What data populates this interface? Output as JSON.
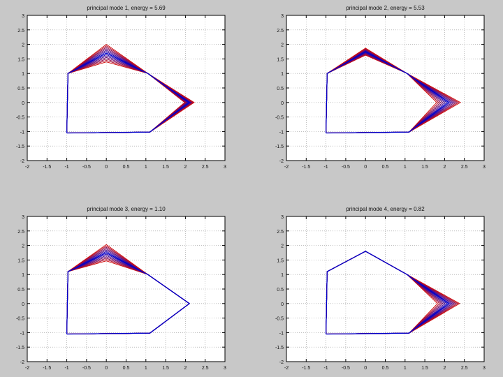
{
  "figure": {
    "background": "#c8c8c8",
    "axes_background": "#ffffff"
  },
  "chart_data": [
    {
      "type": "line",
      "title": "principal mode 1, energy = 5.69",
      "xlabel": "",
      "ylabel": "",
      "xlim": [
        -2,
        3
      ],
      "ylim": [
        3,
        -2
      ],
      "xticks": [
        -2,
        -1.5,
        -1,
        -0.5,
        0,
        0.5,
        1,
        1.5,
        2,
        2.5,
        3
      ],
      "yticks": [
        -2,
        -1.5,
        -1,
        -0.5,
        0,
        0.5,
        1,
        1.5,
        2,
        2.5,
        3
      ],
      "grid": true,
      "series_colors": [
        "#0000cc",
        "#d01010"
      ],
      "shape": {
        "x": [
          -1,
          1.1,
          2.1,
          1.05,
          0,
          -0.97,
          -1
        ],
        "y": [
          -1.05,
          -1.02,
          0,
          1,
          1.7,
          1,
          -1.05
        ]
      },
      "variation": {
        "dx": [
          0,
          0,
          0.12,
          0,
          0,
          0,
          0
        ],
        "dy": [
          0,
          0,
          0,
          0,
          0.3,
          0,
          0
        ]
      }
    },
    {
      "type": "line",
      "title": "principal mode 2, energy = 5.53",
      "xlabel": "",
      "ylabel": "",
      "xlim": [
        -2,
        3
      ],
      "ylim": [
        3,
        -2
      ],
      "xticks": [
        -2,
        -1.5,
        -1,
        -0.5,
        0,
        0.5,
        1,
        1.5,
        2,
        2.5,
        3
      ],
      "yticks": [
        -2,
        -1.5,
        -1,
        -0.5,
        0,
        0.5,
        1,
        1.5,
        2,
        2.5,
        3
      ],
      "grid": true,
      "series_colors": [
        "#0000cc",
        "#d01010"
      ],
      "shape": {
        "x": [
          -1,
          1.1,
          2.1,
          1.05,
          0,
          -0.97,
          -1
        ],
        "y": [
          -1.05,
          -1.02,
          0,
          1,
          1.75,
          1,
          -1.05
        ]
      },
      "variation": {
        "dx": [
          0,
          0,
          0.3,
          0,
          0,
          0,
          0
        ],
        "dy": [
          0,
          0,
          0,
          0,
          0.12,
          0,
          0
        ]
      }
    },
    {
      "type": "line",
      "title": "principal mode 3, energy = 1.10",
      "xlabel": "",
      "ylabel": "",
      "xlim": [
        -2,
        3
      ],
      "ylim": [
        3,
        -2
      ],
      "xticks": [
        -2,
        -1.5,
        -1,
        -0.5,
        0,
        0.5,
        1,
        1.5,
        2,
        2.5,
        3
      ],
      "yticks": [
        -2,
        -1.5,
        -1,
        -0.5,
        0,
        0.5,
        1,
        1.5,
        2,
        2.5,
        3
      ],
      "grid": true,
      "series_colors": [
        "#0000cc",
        "#d01010"
      ],
      "shape": {
        "x": [
          -1,
          1.1,
          2.1,
          1.05,
          0,
          -0.97,
          -1
        ],
        "y": [
          -1.05,
          -1.02,
          0,
          1,
          1.75,
          1.1,
          -1.05
        ]
      },
      "variation": {
        "dx": [
          0,
          0,
          0,
          0,
          0,
          0,
          0
        ],
        "dy": [
          0,
          0,
          0,
          0,
          0.28,
          0,
          0
        ]
      }
    },
    {
      "type": "line",
      "title": "principal mode 4, energy = 0.82",
      "xlabel": "",
      "ylabel": "",
      "xlim": [
        -2,
        3
      ],
      "ylim": [
        3,
        -2
      ],
      "xticks": [
        -2,
        -1.5,
        -1,
        -0.5,
        0,
        0.5,
        1,
        1.5,
        2,
        2.5,
        3
      ],
      "yticks": [
        -2,
        -1.5,
        -1,
        -0.5,
        0,
        0.5,
        1,
        1.5,
        2,
        2.5,
        3
      ],
      "grid": true,
      "series_colors": [
        "#0000cc",
        "#d01010"
      ],
      "shape": {
        "x": [
          -1,
          1.1,
          2.1,
          1.05,
          0,
          -0.97,
          -1
        ],
        "y": [
          -1.05,
          -1.02,
          0,
          1,
          1.8,
          1.1,
          -1.05
        ]
      },
      "variation": {
        "dx": [
          0,
          0,
          0.28,
          0,
          0,
          0,
          0
        ],
        "dy": [
          0,
          0,
          0,
          0,
          0,
          0,
          0
        ]
      }
    }
  ]
}
